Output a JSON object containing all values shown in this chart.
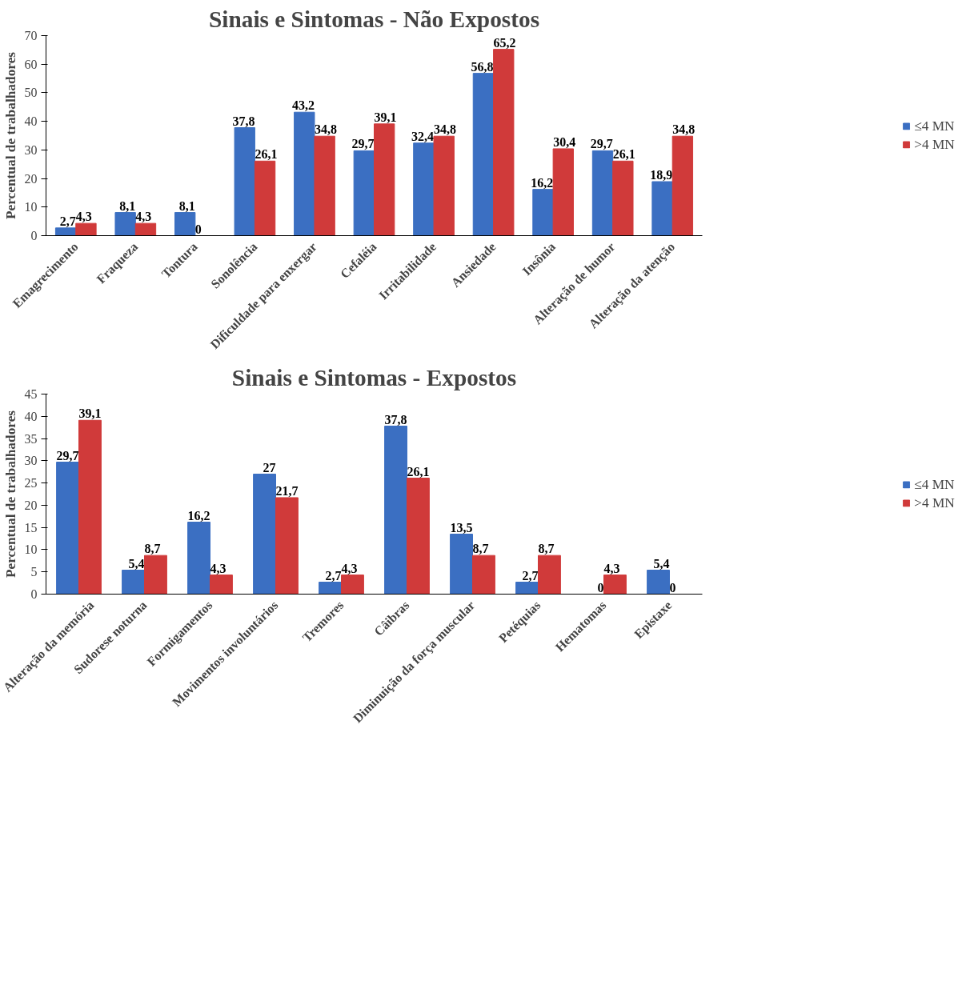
{
  "chart_data": [
    {
      "type": "bar",
      "title": "Sinais e Sintomas - Não Expostos",
      "ylabel": "Percentual de trabalhadores",
      "categories": [
        "Emagrecimento",
        "Fraqueza",
        "Tontura",
        "Sonolência",
        "Dificuldade para enxergar",
        "Cefaléia",
        "Irritabilidade",
        "Ansiedade",
        "Insônia",
        "Alteração de humor",
        "Alteração da atenção"
      ],
      "series": [
        {
          "name": "≤4 MN",
          "color": "#3b6fc2",
          "values": [
            2.7,
            8.1,
            8.1,
            37.8,
            43.2,
            29.7,
            32.4,
            56.8,
            16.2,
            29.7,
            18.9
          ],
          "value_labels": [
            "2,7",
            "8,1",
            "8,1",
            "37,8",
            "43,2",
            "29,7",
            "32,4",
            "56,8",
            "16,2",
            "29,7",
            "18,9"
          ]
        },
        {
          "name": ">4 MN",
          "color": "#d03a3a",
          "values": [
            4.3,
            4.3,
            0,
            26.1,
            34.8,
            39.1,
            34.8,
            65.2,
            30.4,
            26.1,
            34.8
          ],
          "value_labels": [
            "4,3",
            "4,3",
            "0",
            "26,1",
            "34,8",
            "39,1",
            "34,8",
            "65,2",
            "30,4",
            "26,1",
            "34,8"
          ]
        }
      ],
      "ylim": [
        0,
        70
      ],
      "yticks": [
        0,
        10,
        20,
        30,
        40,
        50,
        60,
        70
      ],
      "legend": "right",
      "grid": false
    },
    {
      "type": "bar",
      "title": "Sinais e Sintomas - Expostos",
      "ylabel": "Percentual de trabalhadores",
      "categories": [
        "Alteração da memória",
        "Sudorese noturna",
        "Formigamentos",
        "Movimentos involuntários",
        "Tremores",
        "Câibras",
        "Diminuição da força muscular",
        "Petéquias",
        "Hematomas",
        "Epistaxe"
      ],
      "series": [
        {
          "name": "≤4 MN",
          "color": "#3b6fc2",
          "values": [
            29.7,
            5.4,
            16.2,
            27,
            2.7,
            37.8,
            13.5,
            2.7,
            0,
            5.4
          ],
          "value_labels": [
            "29,7",
            "5,4",
            "16,2",
            "27",
            "2,7",
            "37,8",
            "13,5",
            "2,7",
            "0",
            "5,4"
          ]
        },
        {
          "name": ">4 MN",
          "color": "#d03a3a",
          "values": [
            39.1,
            8.7,
            4.3,
            21.7,
            4.3,
            26.1,
            8.7,
            8.7,
            4.3,
            0
          ],
          "value_labels": [
            "39,1",
            "8,7",
            "4,3",
            "21,7",
            "4,3",
            "26,1",
            "8,7",
            "8,7",
            "4,3",
            "0"
          ]
        }
      ],
      "ylim": [
        0,
        45
      ],
      "yticks": [
        0,
        5,
        10,
        15,
        20,
        25,
        30,
        35,
        40,
        45
      ],
      "legend": "right",
      "grid": false
    }
  ]
}
